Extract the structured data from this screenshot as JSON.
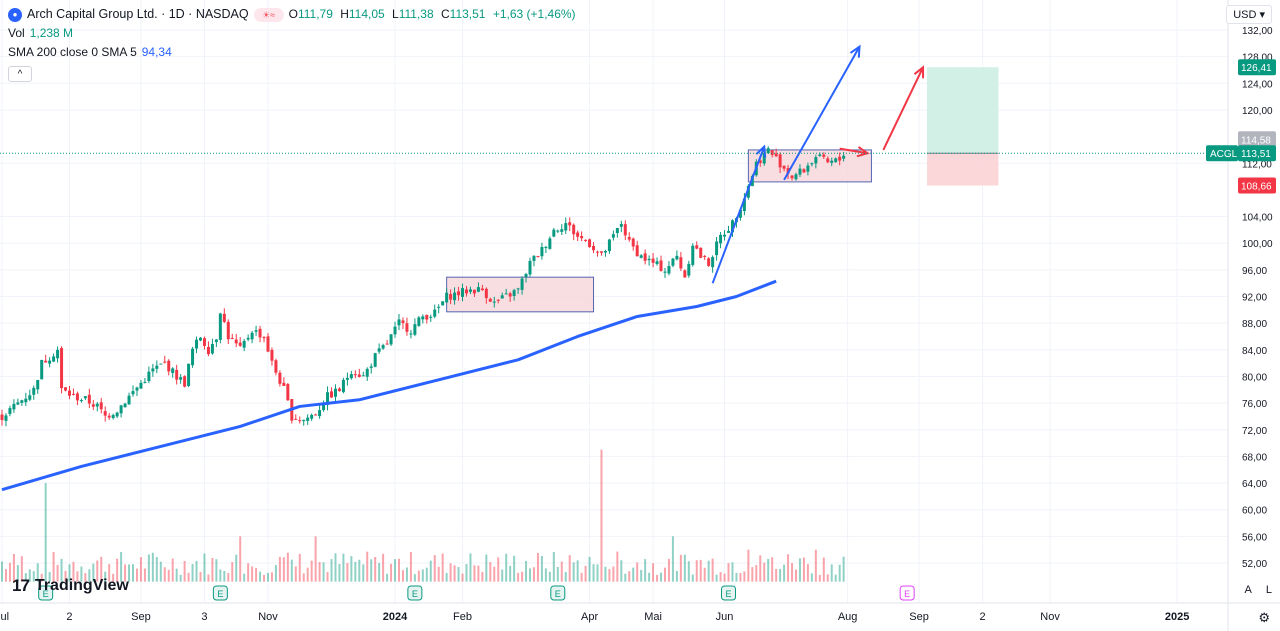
{
  "header": {
    "symbol_icon": "arch-capital-logo-icon",
    "title": "Arch Capital Group Ltd. · 1D · NASDAQ",
    "ohlc": [
      {
        "label": "O",
        "value": "111,79"
      },
      {
        "label": "H",
        "value": "114,05"
      },
      {
        "label": "L",
        "value": "111,38"
      },
      {
        "label": "C",
        "value": "113,51"
      }
    ],
    "change": "+1,63 (+1,46%)",
    "vol_label": "Vol",
    "vol_value": "1,238 M",
    "sma_label": "SMA 200 close 0 SMA 5",
    "sma_value": "94,34",
    "collapse_glyph": "^"
  },
  "currency": "USD",
  "branding": {
    "logo_mark": "17",
    "logo_text": "TradingView"
  },
  "corner_buttons": {
    "auto": "A",
    "log": "L",
    "settings_icon": "gear-icon"
  },
  "price_tags": {
    "target": "126,41",
    "high_box": "114,58",
    "ticker": "ACGL",
    "last": "113,51",
    "stop": "108,66"
  },
  "colors": {
    "up": "#089981",
    "down": "#f23645",
    "sma": "#2962ff",
    "box_fill": "#f8d7da",
    "box_stroke": "#2a3f9d",
    "target_zone": "#cdeee3",
    "stop_zone": "#fbd3d6",
    "red_arrow": "#f23645",
    "blue_arrow": "#2962ff"
  },
  "chart_data": {
    "type": "candlestick",
    "symbol": "ACGL",
    "ylim": [
      50,
      134
    ],
    "x_ticks": [
      "Jul",
      "2",
      "Sep",
      "3",
      "Nov",
      "2024",
      "Feb",
      "Apr",
      "Mai",
      "Jun",
      "Aug",
      "Sep",
      "2",
      "Nov",
      "2025"
    ],
    "y_ticks": [
      "132,00",
      "128,00",
      "124,00",
      "120,00",
      "112,00",
      "104,00",
      "100,00",
      "96,00",
      "92,00",
      "88,00",
      "84,00",
      "80,00",
      "76,00",
      "72,00",
      "68,00",
      "64,00",
      "60,00",
      "56,00",
      "52,00"
    ],
    "price_path": [
      [
        0,
        74
      ],
      [
        4,
        76
      ],
      [
        8,
        78
      ],
      [
        10,
        82
      ],
      [
        12,
        83
      ],
      [
        14,
        84
      ],
      [
        15,
        78
      ],
      [
        18,
        77
      ],
      [
        21,
        76.5
      ],
      [
        24,
        75.5
      ],
      [
        26,
        74
      ],
      [
        29,
        75
      ],
      [
        32,
        77
      ],
      [
        35,
        79
      ],
      [
        38,
        81
      ],
      [
        41,
        82
      ],
      [
        44,
        80
      ],
      [
        46,
        79
      ],
      [
        48,
        84
      ],
      [
        50,
        86
      ],
      [
        52,
        84
      ],
      [
        54,
        86
      ],
      [
        55,
        90
      ],
      [
        57,
        86
      ],
      [
        60,
        84
      ],
      [
        63,
        87
      ],
      [
        66,
        86
      ],
      [
        68,
        82
      ],
      [
        71,
        78
      ],
      [
        73,
        74
      ],
      [
        76,
        73.5
      ],
      [
        79,
        74.5
      ],
      [
        82,
        77
      ],
      [
        85,
        78
      ],
      [
        88,
        81
      ],
      [
        91,
        80
      ],
      [
        94,
        83
      ],
      [
        97,
        85
      ],
      [
        100,
        88
      ],
      [
        103,
        87
      ],
      [
        106,
        89
      ],
      [
        109,
        89.5
      ],
      [
        112,
        92
      ],
      [
        115,
        92.5
      ],
      [
        118,
        93
      ],
      [
        121,
        93
      ],
      [
        124,
        91
      ],
      [
        127,
        92
      ],
      [
        130,
        93
      ],
      [
        133,
        97
      ],
      [
        136,
        99
      ],
      [
        139,
        102
      ],
      [
        142,
        103
      ],
      [
        145,
        101
      ],
      [
        148,
        100
      ],
      [
        151,
        98
      ],
      [
        154,
        101
      ],
      [
        156,
        103
      ],
      [
        158,
        100
      ],
      [
        161,
        98
      ],
      [
        164,
        97
      ],
      [
        167,
        96
      ],
      [
        170,
        98
      ],
      [
        172,
        95
      ],
      [
        174,
        100
      ],
      [
        176,
        98
      ],
      [
        178,
        97
      ],
      [
        181,
        101
      ],
      [
        184,
        103
      ],
      [
        187,
        107
      ],
      [
        190,
        112
      ],
      [
        193,
        114
      ],
      [
        196,
        112
      ],
      [
        199,
        110
      ],
      [
        202,
        111
      ],
      [
        205,
        113
      ],
      [
        208,
        112
      ],
      [
        211,
        112.5
      ],
      [
        212,
        113.51
      ]
    ],
    "sma200": [
      [
        0,
        63
      ],
      [
        20,
        66.5
      ],
      [
        40,
        69.5
      ],
      [
        60,
        72.5
      ],
      [
        75,
        75.5
      ],
      [
        90,
        76.5
      ],
      [
        110,
        79.5
      ],
      [
        130,
        82.5
      ],
      [
        145,
        86
      ],
      [
        160,
        89
      ],
      [
        175,
        90.5
      ],
      [
        185,
        92
      ],
      [
        195,
        94.3
      ]
    ],
    "volume_spikes": [
      [
        11,
        64
      ],
      [
        60,
        56
      ],
      [
        79,
        56
      ],
      [
        151,
        69
      ],
      [
        169,
        56
      ],
      [
        188,
        54
      ],
      [
        205,
        54
      ]
    ],
    "rect_boxes": [
      {
        "t0": 112,
        "t1": 149,
        "p_low": 89.7,
        "p_high": 94.9
      },
      {
        "t0": 188,
        "t1": 219,
        "p_low": 109.2,
        "p_high": 114.0
      }
    ],
    "blue_arrows": [
      {
        "from": [
          179,
          94
        ],
        "to": [
          192,
          114.5
        ]
      },
      {
        "from": [
          197,
          109.5
        ],
        "to": [
          216,
          129.5
        ]
      }
    ],
    "red_arrows": [
      {
        "from": [
          222,
          114
        ],
        "to": [
          232,
          126.4
        ]
      },
      {
        "from": [
          211,
          114.2
        ],
        "to": [
          218,
          113.5
        ]
      }
    ],
    "position_zone": {
      "t0": 233,
      "t1": 251,
      "entry": 113.51,
      "target": 126.41,
      "stop": 108.66
    },
    "events": [
      {
        "label": "E",
        "t": 11
      },
      {
        "label": "E",
        "t": 55
      },
      {
        "label": "E",
        "t": 104
      },
      {
        "label": "E",
        "t": 140
      },
      {
        "label": "E",
        "t": 183
      },
      {
        "label": "E",
        "t": 228
      }
    ]
  }
}
